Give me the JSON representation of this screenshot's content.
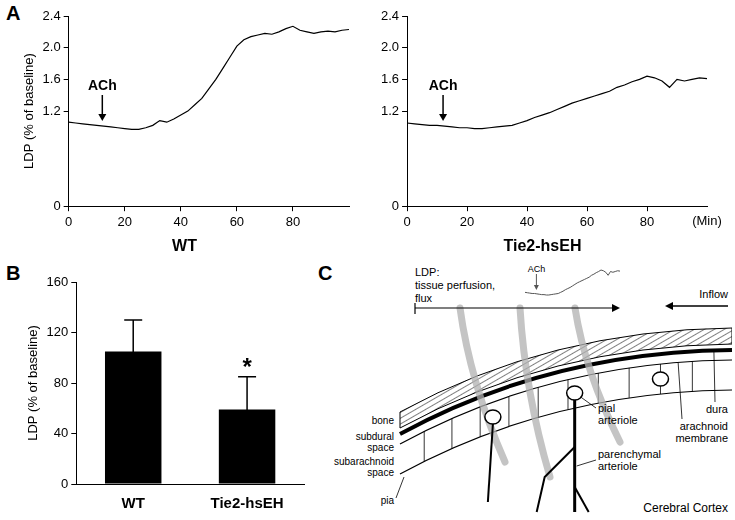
{
  "panel_labels": [
    "A",
    "B",
    "C"
  ],
  "chart_data": [
    {
      "type": "line",
      "title": "WT",
      "y_label": "LDP (% of baseline)",
      "x": [
        0,
        2.5,
        5,
        7.5,
        10,
        12.5,
        15,
        17.5,
        20,
        22.5,
        25,
        27.5,
        30,
        32.5,
        35,
        37.5,
        40,
        42.5,
        45,
        47.5,
        50,
        52.5,
        55,
        57.5,
        60,
        62.5,
        65,
        67.5,
        70,
        72.5,
        75,
        77.5,
        80,
        82.5,
        85,
        87.5,
        90,
        92.5,
        95,
        97.5,
        100
      ],
      "values": [
        1.06,
        1.05,
        1.04,
        1.03,
        1.02,
        1.01,
        1.0,
        0.99,
        0.98,
        0.97,
        0.97,
        0.99,
        1.02,
        1.08,
        1.06,
        1.1,
        1.15,
        1.2,
        1.28,
        1.36,
        1.48,
        1.6,
        1.74,
        1.88,
        2.02,
        2.1,
        2.14,
        2.16,
        2.18,
        2.17,
        2.2,
        2.24,
        2.27,
        2.22,
        2.2,
        2.18,
        2.2,
        2.21,
        2.2,
        2.22,
        2.23
      ],
      "color": "#000000",
      "xlim": [
        0,
        100
      ],
      "xticks": [
        0,
        20,
        40,
        60,
        80
      ],
      "ylim": [
        0,
        2.4
      ],
      "yticks": [
        0,
        1.2,
        1.6,
        {
          "value": 2,
          "label": "2.0"
        },
        2.4
      ],
      "grid": false,
      "annotations": [
        {
          "text": "ACh",
          "x": 12
        }
      ]
    },
    {
      "type": "line",
      "title": "Tie2-hsEH",
      "x_label": "(Min)",
      "x": [
        0,
        2.5,
        5,
        7.5,
        10,
        12.5,
        15,
        17.5,
        20,
        22.5,
        25,
        27.5,
        30,
        32.5,
        35,
        37.5,
        40,
        42.5,
        45,
        47.5,
        50,
        52.5,
        55,
        57.5,
        60,
        62.5,
        65,
        67.5,
        70,
        72.5,
        75,
        77.5,
        80,
        82.5,
        85,
        87.5,
        90,
        92.5,
        95,
        97.5,
        100
      ],
      "values": [
        1.05,
        1.04,
        1.03,
        1.02,
        1.02,
        1.01,
        1.0,
        0.99,
        0.99,
        0.98,
        0.98,
        0.99,
        1.0,
        1.01,
        1.02,
        1.05,
        1.08,
        1.12,
        1.15,
        1.18,
        1.22,
        1.26,
        1.3,
        1.33,
        1.36,
        1.39,
        1.42,
        1.45,
        1.5,
        1.53,
        1.57,
        1.6,
        1.64,
        1.62,
        1.58,
        1.5,
        1.6,
        1.58,
        1.6,
        1.62,
        1.61
      ],
      "color": "#000000",
      "xlim": [
        0,
        100
      ],
      "xticks": [
        0,
        20,
        40,
        60,
        80
      ],
      "ylim": [
        0,
        2.4
      ],
      "yticks": [
        0,
        1.2,
        1.6,
        {
          "value": 2,
          "label": "2.0"
        },
        2.4
      ],
      "grid": false,
      "annotations": [
        {
          "text": "ACh",
          "x": 12
        }
      ]
    },
    {
      "type": "bar",
      "y_label": "LDP (% of baseline)",
      "categories": [
        "WT",
        "Tie2-hsEH"
      ],
      "values": [
        105,
        59
      ],
      "errors": [
        25,
        26
      ],
      "color": "#000000",
      "ylim": [
        0,
        160
      ],
      "yticks": [
        0,
        40,
        80,
        120,
        160
      ],
      "grid": false,
      "annotations": [
        {
          "text": "*",
          "category": "Tie2-hsEH"
        }
      ]
    }
  ],
  "diagram": {
    "inset_annotation": "ACh",
    "ldp": [
      "LDP:",
      "tissue perfusion,",
      "flux"
    ],
    "inflow": "Inflow",
    "dura": "dura",
    "arachnoid": [
      "arachnoid",
      "membrane"
    ],
    "bone": "bone",
    "subdural": [
      "subdural",
      "space"
    ],
    "subarachnoid": [
      "subarachnoid",
      "space"
    ],
    "pia": "pia",
    "pial_arteriole": [
      "pial",
      "arteriole"
    ],
    "parenchymal_arteriole": [
      "parenchymal",
      "arteriole"
    ],
    "region": "Cerebral Cortex"
  }
}
